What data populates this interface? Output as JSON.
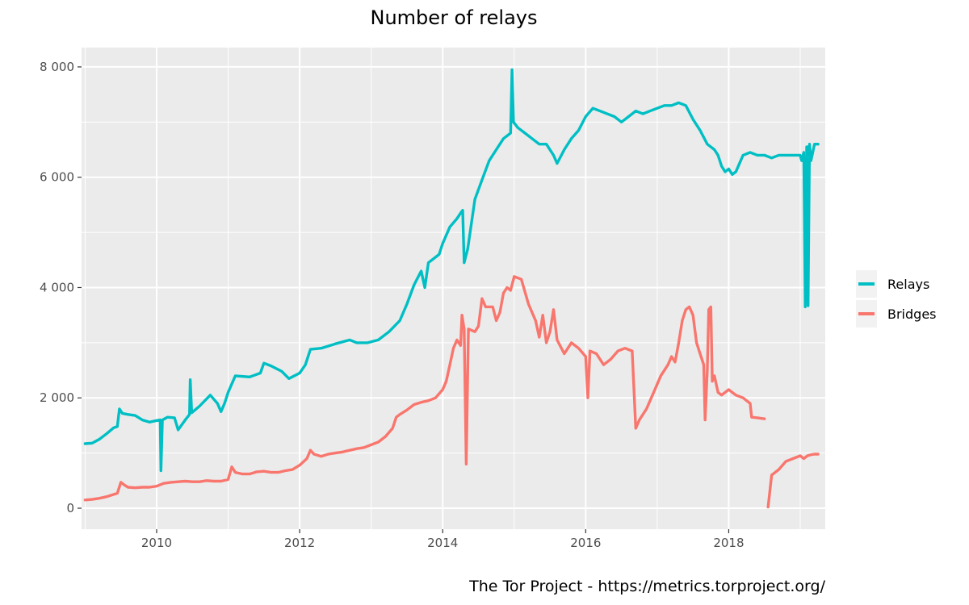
{
  "chart_data": {
    "type": "line",
    "title": "Number of relays",
    "caption": "The Tor Project - https://metrics.torproject.org/",
    "xlabel": "",
    "ylabel": "",
    "xlim": [
      2008.95,
      2019.35
    ],
    "ylim": [
      -380,
      8350
    ],
    "x_ticks": [
      {
        "value": 2010,
        "label": "2010"
      },
      {
        "value": 2012,
        "label": "2012"
      },
      {
        "value": 2014,
        "label": "2014"
      },
      {
        "value": 2016,
        "label": "2016"
      },
      {
        "value": 2018,
        "label": "2018"
      }
    ],
    "y_ticks": [
      {
        "value": 0,
        "label": "0"
      },
      {
        "value": 2000,
        "label": "2 000"
      },
      {
        "value": 4000,
        "label": "4 000"
      },
      {
        "value": 6000,
        "label": "6 000"
      },
      {
        "value": 8000,
        "label": "8 000"
      }
    ],
    "grid": true,
    "legend_position": "right",
    "series": [
      {
        "name": "Relays",
        "color": "#00BFC4",
        "points": [
          [
            2009.0,
            1170
          ],
          [
            2009.1,
            1180
          ],
          [
            2009.2,
            1250
          ],
          [
            2009.3,
            1350
          ],
          [
            2009.4,
            1460
          ],
          [
            2009.45,
            1480
          ],
          [
            2009.48,
            1800
          ],
          [
            2009.52,
            1720
          ],
          [
            2009.6,
            1700
          ],
          [
            2009.7,
            1680
          ],
          [
            2009.8,
            1600
          ],
          [
            2009.9,
            1560
          ],
          [
            2010.0,
            1590
          ],
          [
            2010.05,
            1600
          ],
          [
            2010.06,
            680
          ],
          [
            2010.08,
            1600
          ],
          [
            2010.15,
            1650
          ],
          [
            2010.25,
            1640
          ],
          [
            2010.3,
            1420
          ],
          [
            2010.4,
            1600
          ],
          [
            2010.46,
            1700
          ],
          [
            2010.47,
            2330
          ],
          [
            2010.49,
            1730
          ],
          [
            2010.6,
            1850
          ],
          [
            2010.75,
            2050
          ],
          [
            2010.85,
            1900
          ],
          [
            2010.9,
            1750
          ],
          [
            2010.95,
            1900
          ],
          [
            2011.0,
            2100
          ],
          [
            2011.1,
            2400
          ],
          [
            2011.3,
            2380
          ],
          [
            2011.45,
            2450
          ],
          [
            2011.5,
            2630
          ],
          [
            2011.6,
            2580
          ],
          [
            2011.75,
            2480
          ],
          [
            2011.85,
            2350
          ],
          [
            2012.0,
            2450
          ],
          [
            2012.08,
            2600
          ],
          [
            2012.15,
            2880
          ],
          [
            2012.3,
            2900
          ],
          [
            2012.5,
            2980
          ],
          [
            2012.7,
            3050
          ],
          [
            2012.8,
            3000
          ],
          [
            2012.95,
            3000
          ],
          [
            2013.1,
            3050
          ],
          [
            2013.25,
            3200
          ],
          [
            2013.4,
            3400
          ],
          [
            2013.5,
            3700
          ],
          [
            2013.6,
            4050
          ],
          [
            2013.7,
            4300
          ],
          [
            2013.75,
            4000
          ],
          [
            2013.8,
            4450
          ],
          [
            2013.95,
            4600
          ],
          [
            2014.0,
            4800
          ],
          [
            2014.1,
            5100
          ],
          [
            2014.2,
            5250
          ],
          [
            2014.25,
            5350
          ],
          [
            2014.28,
            5400
          ],
          [
            2014.3,
            4450
          ],
          [
            2014.35,
            4700
          ],
          [
            2014.45,
            5600
          ],
          [
            2014.55,
            5950
          ],
          [
            2014.65,
            6300
          ],
          [
            2014.75,
            6500
          ],
          [
            2014.85,
            6700
          ],
          [
            2014.95,
            6800
          ],
          [
            2014.97,
            7950
          ],
          [
            2014.99,
            7000
          ],
          [
            2015.05,
            6900
          ],
          [
            2015.15,
            6800
          ],
          [
            2015.25,
            6700
          ],
          [
            2015.35,
            6600
          ],
          [
            2015.45,
            6600
          ],
          [
            2015.55,
            6400
          ],
          [
            2015.6,
            6250
          ],
          [
            2015.7,
            6500
          ],
          [
            2015.8,
            6700
          ],
          [
            2015.9,
            6850
          ],
          [
            2016.0,
            7100
          ],
          [
            2016.1,
            7250
          ],
          [
            2016.2,
            7200
          ],
          [
            2016.3,
            7150
          ],
          [
            2016.4,
            7100
          ],
          [
            2016.5,
            7000
          ],
          [
            2016.6,
            7100
          ],
          [
            2016.7,
            7200
          ],
          [
            2016.8,
            7150
          ],
          [
            2016.9,
            7200
          ],
          [
            2017.0,
            7250
          ],
          [
            2017.1,
            7300
          ],
          [
            2017.2,
            7300
          ],
          [
            2017.3,
            7350
          ],
          [
            2017.4,
            7300
          ],
          [
            2017.5,
            7050
          ],
          [
            2017.6,
            6850
          ],
          [
            2017.7,
            6600
          ],
          [
            2017.8,
            6500
          ],
          [
            2017.85,
            6400
          ],
          [
            2017.9,
            6200
          ],
          [
            2017.95,
            6100
          ],
          [
            2018.0,
            6150
          ],
          [
            2018.05,
            6050
          ],
          [
            2018.1,
            6100
          ],
          [
            2018.2,
            6400
          ],
          [
            2018.3,
            6450
          ],
          [
            2018.4,
            6400
          ],
          [
            2018.5,
            6400
          ],
          [
            2018.6,
            6350
          ],
          [
            2018.7,
            6400
          ],
          [
            2018.8,
            6400
          ],
          [
            2018.9,
            6400
          ],
          [
            2019.0,
            6400
          ],
          [
            2019.02,
            6300
          ],
          [
            2019.05,
            6450
          ],
          [
            2019.07,
            3650
          ],
          [
            2019.09,
            6550
          ],
          [
            2019.1,
            6550
          ],
          [
            2019.11,
            3670
          ],
          [
            2019.13,
            6600
          ],
          [
            2019.15,
            6300
          ],
          [
            2019.2,
            6600
          ],
          [
            2019.25,
            6600
          ]
        ]
      },
      {
        "name": "Bridges",
        "color": "#F8766D",
        "points": [
          [
            2009.0,
            150
          ],
          [
            2009.1,
            160
          ],
          [
            2009.2,
            180
          ],
          [
            2009.3,
            210
          ],
          [
            2009.4,
            250
          ],
          [
            2009.45,
            270
          ],
          [
            2009.5,
            470
          ],
          [
            2009.55,
            420
          ],
          [
            2009.6,
            380
          ],
          [
            2009.7,
            370
          ],
          [
            2009.8,
            380
          ],
          [
            2009.9,
            380
          ],
          [
            2010.0,
            400
          ],
          [
            2010.1,
            450
          ],
          [
            2010.2,
            470
          ],
          [
            2010.3,
            480
          ],
          [
            2010.4,
            490
          ],
          [
            2010.5,
            480
          ],
          [
            2010.6,
            480
          ],
          [
            2010.7,
            500
          ],
          [
            2010.8,
            490
          ],
          [
            2010.9,
            490
          ],
          [
            2011.0,
            520
          ],
          [
            2011.05,
            750
          ],
          [
            2011.1,
            650
          ],
          [
            2011.2,
            620
          ],
          [
            2011.3,
            620
          ],
          [
            2011.4,
            660
          ],
          [
            2011.5,
            670
          ],
          [
            2011.6,
            650
          ],
          [
            2011.7,
            650
          ],
          [
            2011.8,
            680
          ],
          [
            2011.9,
            700
          ],
          [
            2012.0,
            780
          ],
          [
            2012.1,
            900
          ],
          [
            2012.15,
            1050
          ],
          [
            2012.2,
            980
          ],
          [
            2012.3,
            940
          ],
          [
            2012.4,
            980
          ],
          [
            2012.5,
            1000
          ],
          [
            2012.6,
            1020
          ],
          [
            2012.7,
            1050
          ],
          [
            2012.8,
            1080
          ],
          [
            2012.9,
            1100
          ],
          [
            2013.0,
            1150
          ],
          [
            2013.1,
            1200
          ],
          [
            2013.2,
            1300
          ],
          [
            2013.3,
            1450
          ],
          [
            2013.35,
            1650
          ],
          [
            2013.4,
            1700
          ],
          [
            2013.5,
            1780
          ],
          [
            2013.6,
            1880
          ],
          [
            2013.7,
            1920
          ],
          [
            2013.8,
            1950
          ],
          [
            2013.9,
            2000
          ],
          [
            2014.0,
            2150
          ],
          [
            2014.05,
            2300
          ],
          [
            2014.1,
            2600
          ],
          [
            2014.15,
            2900
          ],
          [
            2014.2,
            3050
          ],
          [
            2014.25,
            2950
          ],
          [
            2014.27,
            3500
          ],
          [
            2014.3,
            3250
          ],
          [
            2014.33,
            800
          ],
          [
            2014.36,
            3250
          ],
          [
            2014.45,
            3200
          ],
          [
            2014.5,
            3300
          ],
          [
            2014.55,
            3800
          ],
          [
            2014.6,
            3650
          ],
          [
            2014.7,
            3650
          ],
          [
            2014.75,
            3400
          ],
          [
            2014.8,
            3550
          ],
          [
            2014.85,
            3900
          ],
          [
            2014.9,
            4000
          ],
          [
            2014.95,
            3950
          ],
          [
            2015.0,
            4200
          ],
          [
            2015.1,
            4150
          ],
          [
            2015.2,
            3700
          ],
          [
            2015.3,
            3400
          ],
          [
            2015.35,
            3100
          ],
          [
            2015.4,
            3500
          ],
          [
            2015.45,
            3000
          ],
          [
            2015.5,
            3200
          ],
          [
            2015.55,
            3600
          ],
          [
            2015.6,
            3050
          ],
          [
            2015.7,
            2800
          ],
          [
            2015.8,
            3000
          ],
          [
            2015.9,
            2900
          ],
          [
            2016.0,
            2750
          ],
          [
            2016.03,
            2000
          ],
          [
            2016.06,
            2850
          ],
          [
            2016.15,
            2800
          ],
          [
            2016.25,
            2600
          ],
          [
            2016.35,
            2700
          ],
          [
            2016.45,
            2850
          ],
          [
            2016.55,
            2900
          ],
          [
            2016.65,
            2850
          ],
          [
            2016.7,
            1450
          ],
          [
            2016.75,
            1600
          ],
          [
            2016.85,
            1800
          ],
          [
            2016.95,
            2100
          ],
          [
            2017.05,
            2400
          ],
          [
            2017.15,
            2600
          ],
          [
            2017.2,
            2750
          ],
          [
            2017.25,
            2650
          ],
          [
            2017.3,
            3000
          ],
          [
            2017.35,
            3400
          ],
          [
            2017.4,
            3600
          ],
          [
            2017.45,
            3650
          ],
          [
            2017.5,
            3500
          ],
          [
            2017.55,
            3000
          ],
          [
            2017.6,
            2800
          ],
          [
            2017.65,
            2600
          ],
          [
            2017.67,
            1600
          ],
          [
            2017.7,
            2500
          ],
          [
            2017.72,
            3600
          ],
          [
            2017.75,
            3650
          ],
          [
            2017.77,
            2300
          ],
          [
            2017.8,
            2400
          ],
          [
            2017.85,
            2100
          ],
          [
            2017.9,
            2050
          ],
          [
            2018.0,
            2150
          ],
          [
            2018.1,
            2050
          ],
          [
            2018.2,
            2000
          ],
          [
            2018.3,
            1900
          ],
          [
            2018.32,
            1650
          ],
          [
            2018.4,
            1640
          ],
          [
            2018.5,
            1620
          ],
          [
            2018.53,
            null
          ],
          [
            2018.55,
            20
          ],
          [
            2018.6,
            600
          ],
          [
            2018.7,
            700
          ],
          [
            2018.8,
            850
          ],
          [
            2018.9,
            900
          ],
          [
            2019.0,
            950
          ],
          [
            2019.05,
            900
          ],
          [
            2019.1,
            950
          ],
          [
            2019.15,
            970
          ],
          [
            2019.2,
            980
          ],
          [
            2019.25,
            980
          ]
        ]
      }
    ]
  }
}
